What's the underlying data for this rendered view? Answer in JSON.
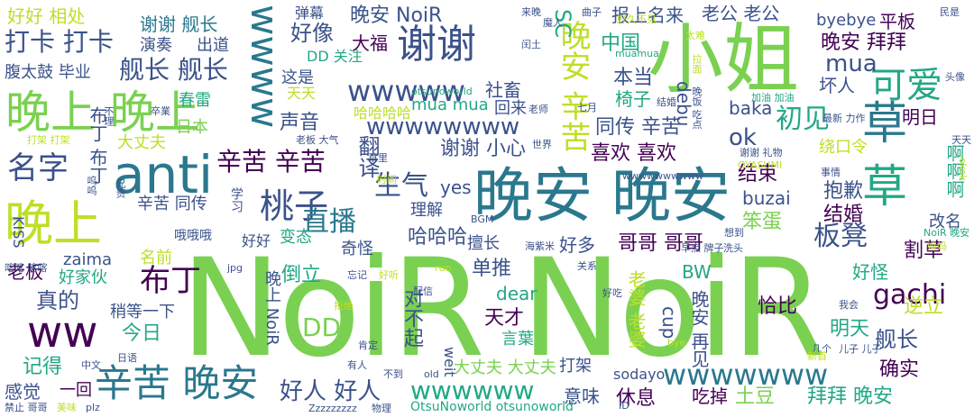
{
  "words": [
    {
      "text": "NoiR NoiR",
      "color": "#7ad151"
    },
    {
      "text": "晚安 晚安",
      "color": "#2a788e"
    },
    {
      "text": "小姐",
      "color": "#7ad151"
    },
    {
      "text": "anti",
      "color": "#2a788e"
    },
    {
      "text": "晚上 晚上",
      "color": "#7ad151"
    },
    {
      "text": "谢谢",
      "color": "#3b528b"
    },
    {
      "text": "晚上",
      "color": "#bddf26"
    },
    {
      "text": "草",
      "color": "#2a788e"
    },
    {
      "text": "草",
      "color": "#22a884"
    },
    {
      "text": "可爱",
      "color": "#22a884"
    },
    {
      "text": "wwww",
      "color": "#2a788e"
    },
    {
      "text": "ww",
      "color": "#440154"
    },
    {
      "text": "辛苦 晚安",
      "color": "#2a788e"
    },
    {
      "text": "桃子",
      "color": "#3b528b"
    },
    {
      "text": "晚安 辛苦",
      "color": "#bddf26"
    },
    {
      "text": "wwwww",
      "color": "#3b528b"
    },
    {
      "text": "wwwwwww",
      "color": "#2a788e"
    },
    {
      "text": "wwwwwwww",
      "color": "#3b528b"
    },
    {
      "text": "gachi",
      "color": "#440154"
    },
    {
      "text": "名字",
      "color": "#3b528b"
    },
    {
      "text": "布丁",
      "color": "#440154"
    },
    {
      "text": "直播",
      "color": "#2a788e"
    },
    {
      "text": "初见",
      "color": "#22a884"
    },
    {
      "text": "好人 好人",
      "color": "#3b528b"
    },
    {
      "text": "舰长 舰长",
      "color": "#3b528b"
    },
    {
      "text": "打卡 打卡",
      "color": "#3b528b"
    },
    {
      "text": "生气",
      "color": "#3b528b"
    },
    {
      "text": "板凳",
      "color": "#3b528b"
    },
    {
      "text": "辛苦 辛苦",
      "color": "#440154"
    },
    {
      "text": "wwwwww",
      "color": "#22a884"
    },
    {
      "text": "晚安 NoiR",
      "color": "#3b528b"
    },
    {
      "text": "报上名来",
      "color": "#3b528b"
    },
    {
      "text": "老公 老公",
      "color": "#3b528b"
    },
    {
      "text": "晚安 拜拜",
      "color": "#440154"
    },
    {
      "text": "mua",
      "color": "#3b528b"
    },
    {
      "text": "好像",
      "color": "#3b528b"
    },
    {
      "text": "大福",
      "color": "#440154"
    },
    {
      "text": "好好 相处",
      "color": "#bddf26"
    },
    {
      "text": "谢谢 舰长",
      "color": "#2a788e"
    },
    {
      "text": "同传 辛苦",
      "color": "#3b528b"
    },
    {
      "text": "谢谢 小心",
      "color": "#3b528b"
    },
    {
      "text": "喜欢 喜欢",
      "color": "#440154"
    },
    {
      "text": "结束",
      "color": "#440154"
    },
    {
      "text": "抱歉",
      "color": "#3b528b"
    },
    {
      "text": "结婚",
      "color": "#440154"
    },
    {
      "text": "哥哥 哥哥",
      "color": "#440154"
    },
    {
      "text": "拜拜 晚安",
      "color": "#22a884"
    },
    {
      "text": "确实",
      "color": "#440154"
    },
    {
      "text": "舰长",
      "color": "#3b528b"
    },
    {
      "text": "休息",
      "color": "#440154"
    },
    {
      "text": "土豆",
      "color": "#7ad151"
    },
    {
      "text": "意味",
      "color": "#3b528b"
    },
    {
      "text": "天才",
      "color": "#440154"
    },
    {
      "text": "单推",
      "color": "#3b528b"
    },
    {
      "text": "倒立",
      "color": "#22a884"
    },
    {
      "text": "真的",
      "color": "#3b528b"
    },
    {
      "text": "今日",
      "color": "#22a884"
    },
    {
      "text": "记得",
      "color": "#22a884"
    },
    {
      "text": "老板",
      "color": "#440154"
    },
    {
      "text": "感觉",
      "color": "#3b528b"
    },
    {
      "text": "哈哈哈",
      "color": "#3b528b"
    },
    {
      "text": "好多",
      "color": "#3b528b"
    },
    {
      "text": "恰比",
      "color": "#440154"
    },
    {
      "text": "割草",
      "color": "#440154"
    },
    {
      "text": "明天",
      "color": "#22a884"
    },
    {
      "text": "逆立",
      "color": "#bddf26"
    },
    {
      "text": "好怪",
      "color": "#22a884"
    },
    {
      "text": "ok",
      "color": "#3b528b"
    },
    {
      "text": "yes",
      "color": "#3b528b"
    },
    {
      "text": "SC",
      "color": "#22a884"
    },
    {
      "text": "中国",
      "color": "#22a884"
    },
    {
      "text": "本当",
      "color": "#3b528b"
    },
    {
      "text": "椅子",
      "color": "#22a884"
    },
    {
      "text": "坏人",
      "color": "#3b528b"
    },
    {
      "text": "声音",
      "color": "#3b528b"
    },
    {
      "text": "哈哈哈哈",
      "color": "#bddf26"
    },
    {
      "text": "mua mua",
      "color": "#22a884"
    },
    {
      "text": "社畜",
      "color": "#3b528b"
    },
    {
      "text": "DD 关注",
      "color": "#22a884"
    },
    {
      "text": "这是",
      "color": "#3b528b"
    },
    {
      "text": "天天",
      "color": "#bddf26"
    },
    {
      "text": "回来",
      "color": "#3b528b"
    },
    {
      "text": "翻译",
      "color": "#3b528b"
    },
    {
      "text": "理解",
      "color": "#3b528b"
    },
    {
      "text": "擅长",
      "color": "#3b528b"
    },
    {
      "text": "奇怪",
      "color": "#3b528b"
    },
    {
      "text": "变态",
      "color": "#22a884"
    },
    {
      "text": "好好",
      "color": "#3b528b"
    },
    {
      "text": "buzai",
      "color": "#3b528b"
    },
    {
      "text": "baka",
      "color": "#3b528b"
    },
    {
      "text": "笨蛋",
      "color": "#7ad151"
    },
    {
      "text": "改名",
      "color": "#3b528b"
    },
    {
      "text": "明日",
      "color": "#440154"
    },
    {
      "text": "debu",
      "color": "#3b528b"
    },
    {
      "text": "byebye",
      "color": "#3b528b"
    },
    {
      "text": "平板",
      "color": "#440154"
    },
    {
      "text": "绕口令",
      "color": "#bddf26"
    },
    {
      "text": "出道",
      "color": "#3b528b"
    },
    {
      "text": "演奏",
      "color": "#3b528b"
    },
    {
      "text": "腹太鼓 毕业",
      "color": "#3b528b"
    },
    {
      "text": "春雷",
      "color": "#22a884"
    },
    {
      "text": "日本",
      "color": "#7ad151"
    },
    {
      "text": "大丈夫",
      "color": "#bddf26"
    },
    {
      "text": "好家伙",
      "color": "#22a884"
    },
    {
      "text": "名前",
      "color": "#bddf26"
    },
    {
      "text": "zaima",
      "color": "#3b528b"
    },
    {
      "text": "稍等一下",
      "color": "#3b528b"
    },
    {
      "text": "DD",
      "color": "#7ad151"
    },
    {
      "text": "晚上 NoiR",
      "color": "#3b528b"
    },
    {
      "text": "对不起",
      "color": "#3b528b"
    },
    {
      "text": "cup",
      "color": "#3b528b"
    },
    {
      "text": "BW",
      "color": "#22a884"
    },
    {
      "text": "dear",
      "color": "#22a884"
    },
    {
      "text": "老婆 老婆",
      "color": "#bddf26"
    },
    {
      "text": "晚安 再见",
      "color": "#3b528b"
    },
    {
      "text": "言葉",
      "color": "#22a884"
    },
    {
      "text": "大丈夫 大丈夫",
      "color": "#7ad151"
    },
    {
      "text": "OtsuNoworld otsunoworld",
      "color": "#22a884"
    },
    {
      "text": "sodayo",
      "color": "#3b528b"
    },
    {
      "text": "打架",
      "color": "#3b528b"
    },
    {
      "text": "吃掉",
      "color": "#440154"
    },
    {
      "text": "一回",
      "color": "#440154"
    },
    {
      "text": "weit",
      "color": "#3b528b"
    },
    {
      "text": "KISS",
      "color": "#3b528b"
    },
    {
      "text": "学习",
      "color": "#3b528b"
    },
    {
      "text": "辛苦 同传",
      "color": "#3b528b"
    },
    {
      "text": "布丁 布丁",
      "color": "#3b528b"
    },
    {
      "text": "哦哦哦",
      "color": "#3b528b"
    },
    {
      "text": "曲子",
      "color": "#3b528b"
    },
    {
      "text": "来晚",
      "color": "#3b528b"
    },
    {
      "text": "魔人",
      "color": "#3b528b"
    },
    {
      "text": "好久不见",
      "color": "#bddf26"
    },
    {
      "text": "民是",
      "color": "#3b528b"
    },
    {
      "text": "头像",
      "color": "#3b528b"
    },
    {
      "text": "太难",
      "color": "#bddf26"
    },
    {
      "text": "muamua",
      "color": "#22a884"
    },
    {
      "text": "拉面",
      "color": "#bddf26"
    },
    {
      "text": "闰土",
      "color": "#3b528b"
    },
    {
      "text": "otsunoworld",
      "color": "#22a884"
    },
    {
      "text": "加油 加油",
      "color": "#22a884"
    },
    {
      "text": "最新 力作",
      "color": "#3b528b"
    },
    {
      "text": "天天",
      "color": "#3b528b"
    },
    {
      "text": "谢谢 礼物",
      "color": "#3b528b"
    },
    {
      "text": "OYASUMI",
      "color": "#bddf26"
    },
    {
      "text": "事情",
      "color": "#3b528b"
    },
    {
      "text": "想到",
      "color": "#3b528b"
    },
    {
      "text": "洗头",
      "color": "#3b528b"
    },
    {
      "text": "NoiR 晚安",
      "color": "#22a884"
    },
    {
      "text": "妈妈",
      "color": "#bddf26"
    },
    {
      "text": "海紫米",
      "color": "#3b528b"
    },
    {
      "text": "早点 牌子",
      "color": "#3b528b"
    },
    {
      "text": "关系",
      "color": "#3b528b"
    },
    {
      "text": "我会",
      "color": "#3b528b"
    },
    {
      "text": "几个",
      "color": "#3b528b"
    },
    {
      "text": "儿子 儿子",
      "color": "#3b528b"
    },
    {
      "text": "新首",
      "color": "#bddf26"
    },
    {
      "text": "好吃",
      "color": "#3b528b"
    },
    {
      "text": "bye",
      "color": "#bddf26"
    },
    {
      "text": "好听",
      "color": "#bddf26"
    },
    {
      "text": "run",
      "color": "#bddf26"
    },
    {
      "text": "忘记",
      "color": "#3b528b"
    },
    {
      "text": "jpg",
      "color": "#3b528b"
    },
    {
      "text": "拒绝",
      "color": "#bddf26"
    },
    {
      "text": "肯定",
      "color": "#3b528b"
    },
    {
      "text": "日语",
      "color": "#3b528b"
    },
    {
      "text": "中文",
      "color": "#3b528b"
    },
    {
      "text": "有人",
      "color": "#3b528b"
    },
    {
      "text": "不到",
      "color": "#3b528b"
    },
    {
      "text": "old",
      "color": "#3b528b"
    },
    {
      "text": "物理",
      "color": "#3b528b"
    },
    {
      "text": "Zzzzzzzzz",
      "color": "#3b528b"
    },
    {
      "text": "ID",
      "color": "#3b528b"
    },
    {
      "text": "禁止 哥哥",
      "color": "#3b528b"
    },
    {
      "text": "美味",
      "color": "#bddf26"
    },
    {
      "text": "plz",
      "color": "#3b528b"
    },
    {
      "text": "喀喀 喀喀",
      "color": "#3b528b"
    },
    {
      "text": "打架 打架",
      "color": "#bddf26"
    },
    {
      "text": "兄贵",
      "color": "#3b528b"
    },
    {
      "text": "呜呜",
      "color": "#3b528b"
    },
    {
      "text": "不理",
      "color": "#3b528b"
    },
    {
      "text": "卒業",
      "color": "#3b528b"
    },
    {
      "text": "老板 大气",
      "color": "#3b528b"
    },
    {
      "text": "世界",
      "color": "#3b528b"
    },
    {
      "text": "草里",
      "color": "#3b528b"
    },
    {
      "text": "时间",
      "color": "#bddf26"
    },
    {
      "text": "BGM",
      "color": "#3b528b"
    },
    {
      "text": "七月",
      "color": "#3b528b"
    },
    {
      "text": "老师",
      "color": "#3b528b"
    },
    {
      "text": "结婚",
      "color": "#3b528b"
    },
    {
      "text": "晚饭 吃点",
      "color": "#3b528b"
    },
    {
      "text": "弹幕",
      "color": "#3b528b"
    },
    {
      "text": "wwwwwwwwww",
      "color": "#3b528b"
    },
    {
      "text": "配信",
      "color": "#3b528b"
    },
    {
      "text": "啊啊啊",
      "color": "#22a884"
    },
    {
      "text": "okok",
      "color": "#bddf26"
    }
  ]
}
